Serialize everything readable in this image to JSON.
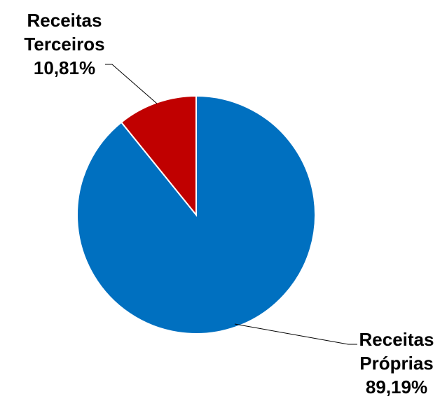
{
  "chart_data": {
    "type": "pie",
    "title": "",
    "legend": "none",
    "slices": [
      {
        "label_lines": [
          "Receitas",
          "Próprias",
          "89,19%"
        ],
        "value": 89.19,
        "color": "#0070C0"
      },
      {
        "label_lines": [
          "Receitas",
          "Terceiros",
          "10,81%"
        ],
        "value": 10.81,
        "color": "#C00000"
      }
    ]
  }
}
